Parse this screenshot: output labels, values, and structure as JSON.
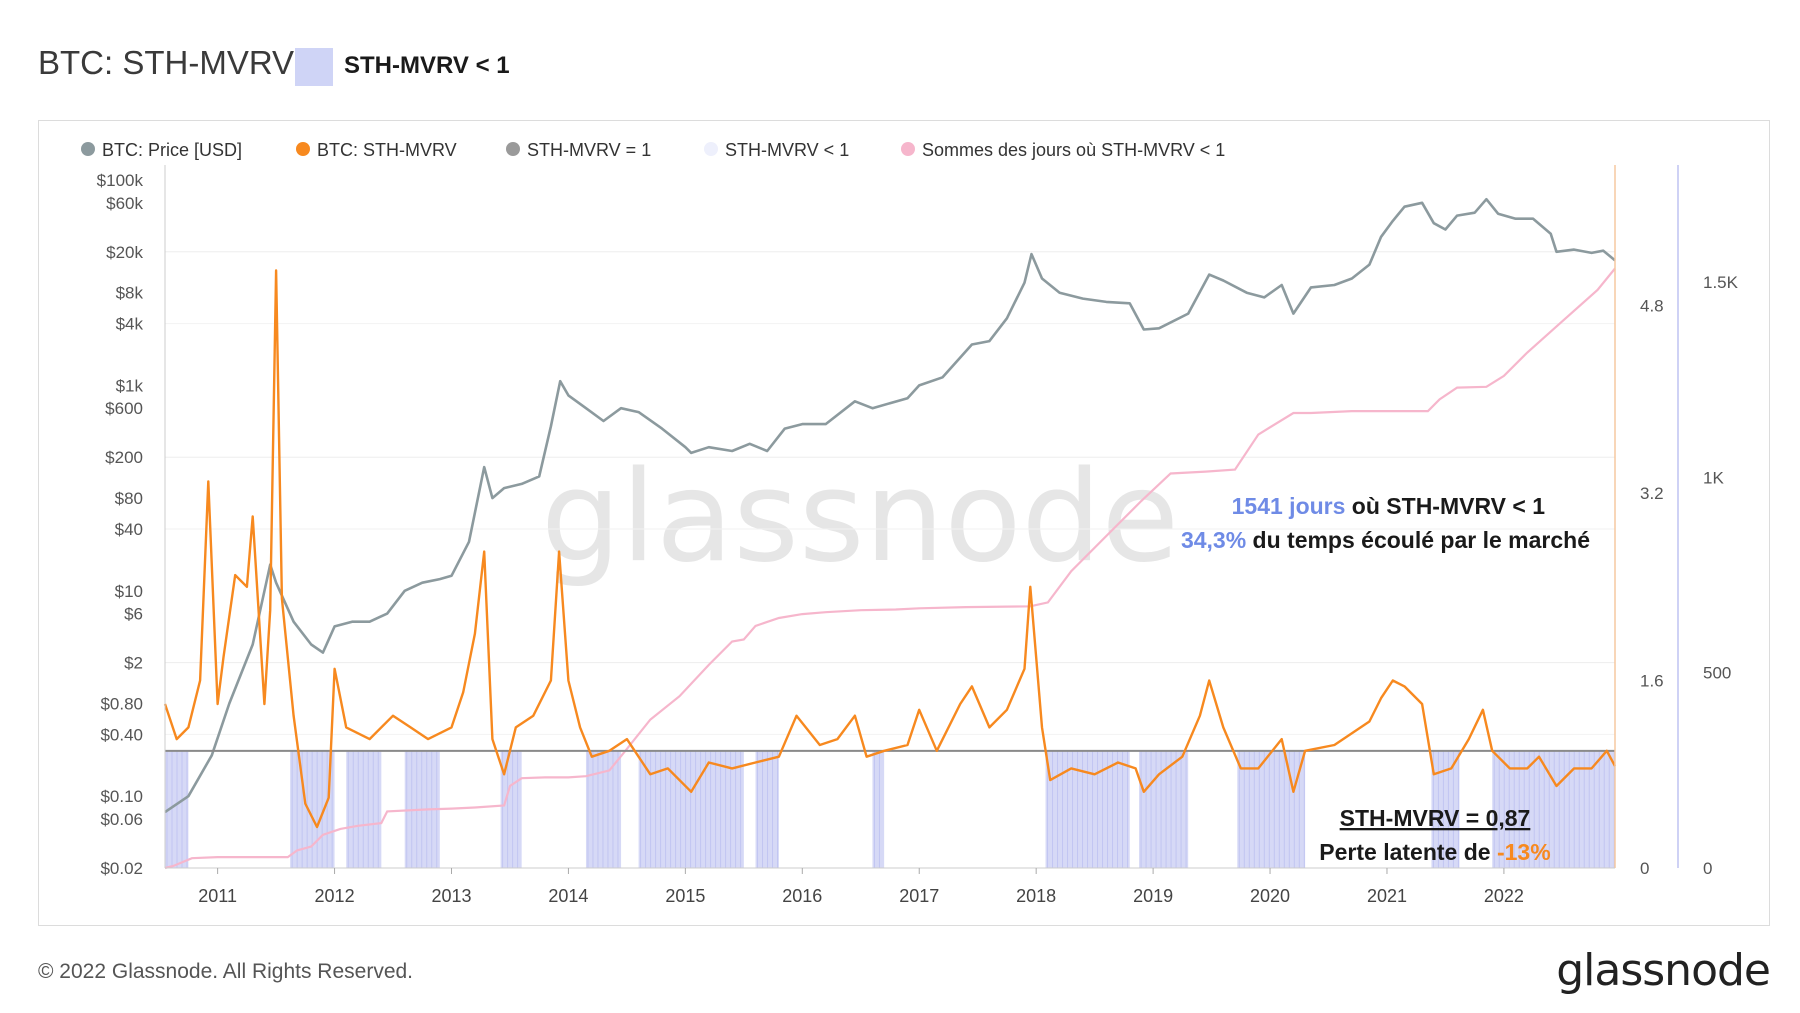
{
  "header": {
    "title": "BTC: STH-MVRV",
    "badge_label": "STH-MVRV < 1",
    "badge_color": "#cfd4f6"
  },
  "footer": {
    "copyright": "© 2022 Glassnode. All Rights Reserved.",
    "logo": "glassnode"
  },
  "watermark": "glassnode",
  "annotations": {
    "days_count": "1541 jours",
    "days_text": " où STH-MVRV < 1",
    "percent": "34,3%",
    "percent_text": " du temps écoulé par le marché",
    "current_value": "STH-MVRV = 0,87",
    "loss_text": "Perte latente de ",
    "loss_value": "-13%"
  },
  "colors": {
    "price": "#8c9a9e",
    "sth_mvrv": "#f7891f",
    "threshold": "#8a8a8a",
    "below_one": "#cfd2f5",
    "cumulative_days": "#f6b6cc",
    "highlight_blue": "#6f8be6",
    "highlight_orange": "#f7891f"
  },
  "chart_data": {
    "type": "line",
    "title": "BTC: STH-MVRV",
    "legend": [
      {
        "label": "BTC: Price [USD]",
        "color": "#8c9a9e"
      },
      {
        "label": "BTC: STH-MVRV",
        "color": "#f7891f"
      },
      {
        "label": "STH-MVRV = 1",
        "color": "#9a9a9a"
      },
      {
        "label": "STH-MVRV < 1",
        "color": "#eef0fc"
      },
      {
        "label": "Sommes des jours où STH-MVRV < 1",
        "color": "#f6b6cc"
      }
    ],
    "x_ticks": [
      "2011",
      "2012",
      "2013",
      "2014",
      "2015",
      "2016",
      "2017",
      "2018",
      "2019",
      "2020",
      "2021",
      "2022"
    ],
    "x_range": [
      2010.55,
      2022.95
    ],
    "price_axis": {
      "scale": "log",
      "range": [
        0.02,
        140000
      ],
      "ticks": [
        {
          "label": "$100k",
          "value": 100000
        },
        {
          "label": "$60k",
          "value": 60000
        },
        {
          "label": "$20k",
          "value": 20000
        },
        {
          "label": "$8k",
          "value": 8000
        },
        {
          "label": "$4k",
          "value": 4000
        },
        {
          "label": "$1k",
          "value": 1000
        },
        {
          "label": "$600",
          "value": 600
        },
        {
          "label": "$200",
          "value": 200
        },
        {
          "label": "$80",
          "value": 80
        },
        {
          "label": "$40",
          "value": 40
        },
        {
          "label": "$10",
          "value": 10
        },
        {
          "label": "$6",
          "value": 6
        },
        {
          "label": "$2",
          "value": 2
        },
        {
          "label": "$0.80",
          "value": 0.8
        },
        {
          "label": "$0.40",
          "value": 0.4
        },
        {
          "label": "$0.10",
          "value": 0.1
        },
        {
          "label": "$0.06",
          "value": 0.06
        },
        {
          "label": "$0.02",
          "value": 0.02
        }
      ]
    },
    "mvrv_axis": {
      "range": [
        0,
        6.0
      ],
      "ticks": [
        {
          "label": "0",
          "value": 0
        },
        {
          "label": "1.6",
          "value": 1.6
        },
        {
          "label": "3.2",
          "value": 3.2
        },
        {
          "label": "4.8",
          "value": 4.8
        }
      ]
    },
    "days_axis": {
      "range": [
        0,
        1800
      ],
      "ticks": [
        {
          "label": "0",
          "value": 0
        },
        {
          "label": "500",
          "value": 500
        },
        {
          "label": "1K",
          "value": 1000
        },
        {
          "label": "1.5K",
          "value": 1500
        }
      ]
    },
    "threshold_value": 1,
    "series": [
      {
        "name": "BTC: Price [USD]",
        "axis": "price",
        "points": [
          [
            2010.55,
            0.07
          ],
          [
            2010.75,
            0.1
          ],
          [
            2010.95,
            0.25
          ],
          [
            2011.1,
            0.8
          ],
          [
            2011.3,
            3
          ],
          [
            2011.45,
            18
          ],
          [
            2011.5,
            12
          ],
          [
            2011.65,
            5
          ],
          [
            2011.8,
            3
          ],
          [
            2011.9,
            2.5
          ],
          [
            2012.0,
            4.5
          ],
          [
            2012.15,
            5
          ],
          [
            2012.3,
            5
          ],
          [
            2012.45,
            6
          ],
          [
            2012.6,
            10
          ],
          [
            2012.75,
            12
          ],
          [
            2012.9,
            13
          ],
          [
            2013.0,
            14
          ],
          [
            2013.15,
            30
          ],
          [
            2013.28,
            160
          ],
          [
            2013.35,
            80
          ],
          [
            2013.45,
            100
          ],
          [
            2013.6,
            110
          ],
          [
            2013.75,
            130
          ],
          [
            2013.85,
            400
          ],
          [
            2013.93,
            1100
          ],
          [
            2014.0,
            800
          ],
          [
            2014.15,
            600
          ],
          [
            2014.3,
            450
          ],
          [
            2014.45,
            600
          ],
          [
            2014.6,
            550
          ],
          [
            2014.8,
            380
          ],
          [
            2015.0,
            250
          ],
          [
            2015.05,
            220
          ],
          [
            2015.2,
            250
          ],
          [
            2015.4,
            230
          ],
          [
            2015.55,
            270
          ],
          [
            2015.7,
            230
          ],
          [
            2015.85,
            380
          ],
          [
            2016.0,
            420
          ],
          [
            2016.2,
            420
          ],
          [
            2016.45,
            700
          ],
          [
            2016.6,
            600
          ],
          [
            2016.9,
            750
          ],
          [
            2017.0,
            1000
          ],
          [
            2017.2,
            1200
          ],
          [
            2017.45,
            2500
          ],
          [
            2017.6,
            2700
          ],
          [
            2017.75,
            4500
          ],
          [
            2017.9,
            10000
          ],
          [
            2017.96,
            19000
          ],
          [
            2018.05,
            11000
          ],
          [
            2018.2,
            8000
          ],
          [
            2018.4,
            7000
          ],
          [
            2018.6,
            6500
          ],
          [
            2018.8,
            6300
          ],
          [
            2018.92,
            3500
          ],
          [
            2019.05,
            3600
          ],
          [
            2019.3,
            5000
          ],
          [
            2019.48,
            12000
          ],
          [
            2019.6,
            10500
          ],
          [
            2019.8,
            8000
          ],
          [
            2019.95,
            7200
          ],
          [
            2020.1,
            9500
          ],
          [
            2020.2,
            5000
          ],
          [
            2020.35,
            9000
          ],
          [
            2020.55,
            9500
          ],
          [
            2020.7,
            11000
          ],
          [
            2020.85,
            15000
          ],
          [
            2020.95,
            28000
          ],
          [
            2021.05,
            40000
          ],
          [
            2021.15,
            55000
          ],
          [
            2021.3,
            60000
          ],
          [
            2021.4,
            38000
          ],
          [
            2021.5,
            33000
          ],
          [
            2021.6,
            45000
          ],
          [
            2021.75,
            48000
          ],
          [
            2021.85,
            65000
          ],
          [
            2021.95,
            47000
          ],
          [
            2022.1,
            42000
          ],
          [
            2022.25,
            42000
          ],
          [
            2022.4,
            30000
          ],
          [
            2022.45,
            20000
          ],
          [
            2022.6,
            21000
          ],
          [
            2022.75,
            19500
          ],
          [
            2022.85,
            20500
          ],
          [
            2022.95,
            16500
          ]
        ]
      },
      {
        "name": "BTC: STH-MVRV",
        "axis": "mvrv",
        "points": [
          [
            2010.55,
            1.4
          ],
          [
            2010.65,
            1.1
          ],
          [
            2010.75,
            1.2
          ],
          [
            2010.85,
            1.6
          ],
          [
            2010.92,
            3.3
          ],
          [
            2011.0,
            1.4
          ],
          [
            2011.05,
            1.8
          ],
          [
            2011.15,
            2.5
          ],
          [
            2011.25,
            2.4
          ],
          [
            2011.3,
            3.0
          ],
          [
            2011.4,
            1.4
          ],
          [
            2011.45,
            2.2
          ],
          [
            2011.5,
            5.1
          ],
          [
            2011.55,
            2.3
          ],
          [
            2011.65,
            1.3
          ],
          [
            2011.75,
            0.55
          ],
          [
            2011.85,
            0.35
          ],
          [
            2011.95,
            0.6
          ],
          [
            2012.0,
            1.7
          ],
          [
            2012.1,
            1.2
          ],
          [
            2012.3,
            1.1
          ],
          [
            2012.5,
            1.3
          ],
          [
            2012.65,
            1.2
          ],
          [
            2012.8,
            1.1
          ],
          [
            2013.0,
            1.2
          ],
          [
            2013.1,
            1.5
          ],
          [
            2013.2,
            2.0
          ],
          [
            2013.28,
            2.7
          ],
          [
            2013.35,
            1.1
          ],
          [
            2013.45,
            0.8
          ],
          [
            2013.55,
            1.2
          ],
          [
            2013.7,
            1.3
          ],
          [
            2013.85,
            1.6
          ],
          [
            2013.92,
            2.7
          ],
          [
            2014.0,
            1.6
          ],
          [
            2014.1,
            1.2
          ],
          [
            2014.2,
            0.95
          ],
          [
            2014.35,
            1.0
          ],
          [
            2014.5,
            1.1
          ],
          [
            2014.7,
            0.8
          ],
          [
            2014.85,
            0.85
          ],
          [
            2015.05,
            0.65
          ],
          [
            2015.2,
            0.9
          ],
          [
            2015.4,
            0.85
          ],
          [
            2015.6,
            0.9
          ],
          [
            2015.8,
            0.95
          ],
          [
            2015.95,
            1.3
          ],
          [
            2016.15,
            1.05
          ],
          [
            2016.3,
            1.1
          ],
          [
            2016.45,
            1.3
          ],
          [
            2016.55,
            0.95
          ],
          [
            2016.7,
            1.0
          ],
          [
            2016.9,
            1.05
          ],
          [
            2017.0,
            1.35
          ],
          [
            2017.15,
            1.0
          ],
          [
            2017.35,
            1.4
          ],
          [
            2017.45,
            1.55
          ],
          [
            2017.6,
            1.2
          ],
          [
            2017.75,
            1.35
          ],
          [
            2017.9,
            1.7
          ],
          [
            2017.95,
            2.4
          ],
          [
            2018.05,
            1.2
          ],
          [
            2018.12,
            0.75
          ],
          [
            2018.3,
            0.85
          ],
          [
            2018.5,
            0.8
          ],
          [
            2018.7,
            0.9
          ],
          [
            2018.85,
            0.85
          ],
          [
            2018.92,
            0.65
          ],
          [
            2019.05,
            0.8
          ],
          [
            2019.25,
            0.95
          ],
          [
            2019.4,
            1.3
          ],
          [
            2019.48,
            1.6
          ],
          [
            2019.6,
            1.2
          ],
          [
            2019.75,
            0.85
          ],
          [
            2019.9,
            0.85
          ],
          [
            2020.1,
            1.1
          ],
          [
            2020.2,
            0.65
          ],
          [
            2020.3,
            1.0
          ],
          [
            2020.55,
            1.05
          ],
          [
            2020.7,
            1.15
          ],
          [
            2020.85,
            1.25
          ],
          [
            2020.95,
            1.45
          ],
          [
            2021.05,
            1.6
          ],
          [
            2021.15,
            1.55
          ],
          [
            2021.3,
            1.4
          ],
          [
            2021.4,
            0.8
          ],
          [
            2021.55,
            0.85
          ],
          [
            2021.7,
            1.1
          ],
          [
            2021.82,
            1.35
          ],
          [
            2021.9,
            1.0
          ],
          [
            2022.05,
            0.85
          ],
          [
            2022.2,
            0.85
          ],
          [
            2022.3,
            0.95
          ],
          [
            2022.45,
            0.7
          ],
          [
            2022.6,
            0.85
          ],
          [
            2022.75,
            0.85
          ],
          [
            2022.88,
            1.0
          ],
          [
            2022.95,
            0.87
          ]
        ]
      },
      {
        "name": "Sommes des jours où STH-MVRV < 1",
        "axis": "days",
        "points": [
          [
            2010.55,
            0
          ],
          [
            2010.62,
            5
          ],
          [
            2010.78,
            25
          ],
          [
            2011.0,
            28
          ],
          [
            2011.2,
            28
          ],
          [
            2011.4,
            28
          ],
          [
            2011.6,
            28
          ],
          [
            2011.68,
            45
          ],
          [
            2011.8,
            55
          ],
          [
            2011.9,
            85
          ],
          [
            2012.05,
            100
          ],
          [
            2012.2,
            108
          ],
          [
            2012.4,
            115
          ],
          [
            2012.45,
            145
          ],
          [
            2012.8,
            150
          ],
          [
            2013.0,
            152
          ],
          [
            2013.2,
            155
          ],
          [
            2013.45,
            160
          ],
          [
            2013.5,
            210
          ],
          [
            2013.6,
            230
          ],
          [
            2013.8,
            232
          ],
          [
            2014.0,
            232
          ],
          [
            2014.15,
            235
          ],
          [
            2014.35,
            250
          ],
          [
            2014.5,
            305
          ],
          [
            2014.7,
            380
          ],
          [
            2014.95,
            440
          ],
          [
            2015.2,
            520
          ],
          [
            2015.4,
            580
          ],
          [
            2015.5,
            585
          ],
          [
            2015.6,
            620
          ],
          [
            2015.8,
            640
          ],
          [
            2016.0,
            650
          ],
          [
            2016.2,
            655
          ],
          [
            2016.5,
            660
          ],
          [
            2016.8,
            662
          ],
          [
            2017.0,
            665
          ],
          [
            2017.4,
            668
          ],
          [
            2017.95,
            670
          ],
          [
            2018.1,
            680
          ],
          [
            2018.3,
            760
          ],
          [
            2018.6,
            850
          ],
          [
            2018.9,
            940
          ],
          [
            2019.15,
            1010
          ],
          [
            2019.45,
            1015
          ],
          [
            2019.7,
            1020
          ],
          [
            2019.9,
            1110
          ],
          [
            2020.2,
            1165
          ],
          [
            2020.35,
            1165
          ],
          [
            2020.7,
            1170
          ],
          [
            2021.0,
            1170
          ],
          [
            2021.35,
            1170
          ],
          [
            2021.45,
            1200
          ],
          [
            2021.6,
            1230
          ],
          [
            2021.85,
            1232
          ],
          [
            2022.0,
            1260
          ],
          [
            2022.2,
            1320
          ],
          [
            2022.5,
            1400
          ],
          [
            2022.8,
            1480
          ],
          [
            2022.95,
            1535
          ]
        ]
      }
    ],
    "below_one_periods": [
      [
        2010.55,
        2010.75
      ],
      [
        2011.62,
        2012.0
      ],
      [
        2012.1,
        2012.4
      ],
      [
        2012.6,
        2012.9
      ],
      [
        2013.42,
        2013.6
      ],
      [
        2014.15,
        2014.45
      ],
      [
        2014.6,
        2015.5
      ],
      [
        2015.6,
        2015.8
      ],
      [
        2016.6,
        2016.7
      ],
      [
        2018.08,
        2018.8
      ],
      [
        2018.88,
        2019.3
      ],
      [
        2019.72,
        2020.3
      ],
      [
        2021.38,
        2021.62
      ],
      [
        2021.9,
        2022.95
      ]
    ]
  }
}
